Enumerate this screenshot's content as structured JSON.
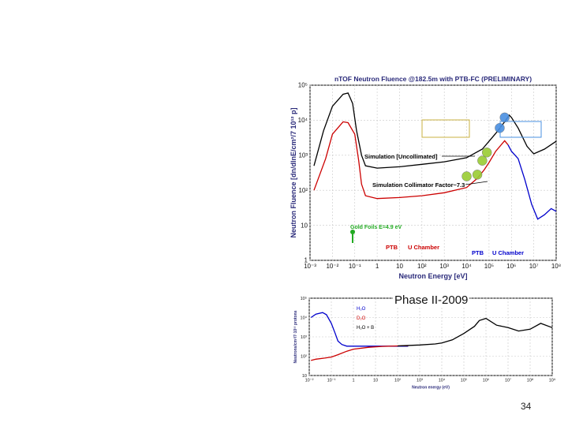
{
  "slide": {
    "number": "34",
    "caption": "Phase II-2009"
  },
  "chart_data": [
    {
      "type": "line",
      "title": "nTOF Neutron Fluence @182.5m with PTB-FC (PRELIMINARY)",
      "xlabel": "Neutron Energy [eV]",
      "ylabel": "Neutron Fluence [dn/dlnE/cm²/7 10¹² p]",
      "xscale": "log",
      "yscale": "log",
      "xlim": [
        0.001,
        100000000
      ],
      "ylim": [
        1,
        100000
      ],
      "x_ticks": [
        "10⁻³",
        "10⁻²",
        "10⁻¹",
        "1",
        "10",
        "10²",
        "10³",
        "10⁴",
        "10⁵",
        "10⁶",
        "10⁷",
        "10⁸"
      ],
      "y_ticks": [
        "1",
        "10",
        "10²",
        "10³",
        "10⁴",
        "10⁵"
      ],
      "grid": true,
      "annotations": [
        {
          "text": "Simulation [Uncollimated]",
          "color": "#000000"
        },
        {
          "text": "Simulation Collimator Factor~7.3",
          "color": "#000000"
        },
        {
          "text": "Gold Foils E=4.9 eV",
          "color": "#22aa22"
        },
        {
          "text": "PTB",
          "color": "#cc0000"
        },
        {
          "text": "U Chamber",
          "color": "#cc0000"
        },
        {
          "text": "PTB",
          "color": "#0000cc"
        },
        {
          "text": "U Chamber",
          "color": "#0000cc"
        }
      ],
      "series": [
        {
          "name": "Simulation [Uncollimated]",
          "color": "#000000",
          "x": [
            0.0015,
            0.004,
            0.01,
            0.03,
            0.05,
            0.08,
            0.12,
            0.2,
            0.3,
            1,
            10,
            100,
            1000,
            10000,
            50000,
            100000,
            200000,
            500000,
            800000,
            1000000,
            2000000,
            5000000,
            10000000,
            30000000,
            100000000
          ],
          "y": [
            500,
            5000,
            25000,
            55000,
            60000,
            30000,
            5000,
            1000,
            500,
            430,
            470,
            550,
            650,
            850,
            1500,
            2500,
            4200,
            9000,
            14000,
            12000,
            6000,
            1800,
            1100,
            1500,
            2500
          ]
        },
        {
          "name": "Simulation Collimator Factor~7.3",
          "color": "#cc0000",
          "x": [
            0.0015,
            0.005,
            0.01,
            0.03,
            0.05,
            0.1,
            0.15,
            0.2,
            0.3,
            1,
            10,
            100,
            1000,
            10000,
            30000,
            60000,
            100000,
            200000,
            500000,
            700000
          ],
          "y": [
            100,
            800,
            4000,
            9000,
            8500,
            4000,
            700,
            150,
            70,
            58,
            62,
            70,
            85,
            120,
            220,
            380,
            620,
            1300,
            2600,
            2000
          ]
        },
        {
          "name": "PTB U Chamber",
          "color": "#0000cc",
          "x": [
            700000,
            1000000,
            2000000,
            4000000,
            8000000,
            15000000,
            30000000,
            60000000,
            100000000
          ],
          "y": [
            2000,
            1300,
            800,
            200,
            40,
            15,
            20,
            30,
            25
          ]
        }
      ],
      "markers": [
        {
          "x": 10000,
          "y": 250,
          "color": "#9acd32"
        },
        {
          "x": 30000,
          "y": 280,
          "color": "#9acd32"
        },
        {
          "x": 50000,
          "y": 700,
          "color": "#9acd32"
        },
        {
          "x": 80000,
          "y": 1200,
          "color": "#9acd32"
        },
        {
          "x": 300000,
          "y": 6000,
          "color": "#4a90e2"
        },
        {
          "x": 500000,
          "y": 12000,
          "color": "#4a90e2"
        }
      ]
    },
    {
      "type": "line",
      "title": "",
      "xlabel": "Neutron energy (eV)",
      "ylabel": "Neutrons/cm²/7·10¹² protons",
      "xscale": "log",
      "yscale": "log",
      "xlim": [
        0.01,
        1000000000
      ],
      "ylim": [
        10,
        100000
      ],
      "x_ticks": [
        "10⁻²",
        "10⁻¹",
        "1",
        "10",
        "10²",
        "10³",
        "10⁴",
        "10⁵",
        "10⁶",
        "10⁷",
        "10⁸",
        "10⁹"
      ],
      "y_ticks": [
        "10",
        "10²",
        "10³",
        "10⁴",
        "10⁵"
      ],
      "grid": true,
      "legend": {
        "placement": "top-left",
        "entries": [
          {
            "text": "H₂O",
            "color": "#0000cc"
          },
          {
            "text": "D₂O",
            "color": "#cc0000"
          },
          {
            "text": "H₂O + B",
            "color": "#000000"
          }
        ]
      },
      "series": [
        {
          "name": "H₂O",
          "color": "#0000cc",
          "x": [
            0.012,
            0.02,
            0.04,
            0.06,
            0.1,
            0.15,
            0.2,
            0.3,
            0.5,
            1,
            5,
            20,
            100,
            300
          ],
          "y": [
            10000,
            15000,
            18000,
            14000,
            5000,
            1500,
            600,
            400,
            330,
            330,
            330,
            330,
            330,
            330
          ]
        },
        {
          "name": "D₂O",
          "color": "#cc0000",
          "x": [
            0.012,
            0.02,
            0.05,
            0.1,
            0.2,
            0.5,
            1,
            5,
            20,
            100,
            300
          ],
          "y": [
            60,
            70,
            80,
            90,
            120,
            180,
            230,
            290,
            320,
            340,
            350
          ]
        },
        {
          "name": "H₂O + B",
          "color": "#000000",
          "x": [
            100,
            1000,
            5000,
            10000,
            30000,
            100000,
            300000,
            500000,
            1000000,
            3000000,
            10000000,
            30000000,
            100000000,
            300000000,
            1000000000
          ],
          "y": [
            340,
            380,
            430,
            480,
            700,
            1500,
            3500,
            7000,
            9000,
            4000,
            3000,
            2000,
            2500,
            5000,
            3000
          ]
        }
      ]
    }
  ]
}
